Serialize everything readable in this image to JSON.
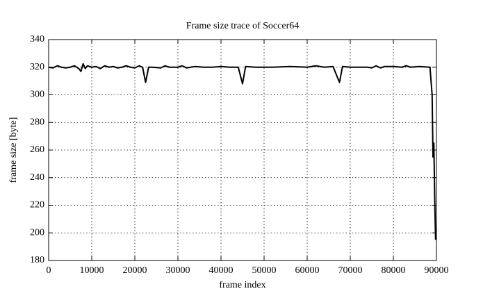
{
  "chart_data": {
    "type": "line",
    "title": "Frame size trace of Soccer64",
    "xlabel": "frame index",
    "ylabel": "frame size [byte]",
    "x": [
      0,
      1000,
      2000,
      3000,
      4000,
      5000,
      6000,
      7000,
      7500,
      8000,
      8500,
      9000,
      10000,
      11000,
      12000,
      13000,
      14000,
      15000,
      16000,
      17000,
      18000,
      19000,
      20000,
      21000,
      21800,
      22500,
      23200,
      24000,
      26000,
      27000,
      28000,
      30000,
      31000,
      32000,
      34000,
      36000,
      38000,
      40000,
      42000,
      44000,
      45000,
      45700,
      48000,
      52000,
      56000,
      60000,
      62000,
      64000,
      66000,
      67500,
      68200,
      70000,
      74000,
      75000,
      76000,
      77000,
      78000,
      80000,
      82000,
      83000,
      84000,
      86000,
      88500,
      89000,
      89200,
      89400,
      89600,
      89800
    ],
    "series": [
      {
        "name": "Soccer64",
        "color": "#000000",
        "values": [
          320,
          319.5,
          321,
          320,
          319.5,
          320,
          321,
          319,
          317,
          322.5,
          319,
          321,
          320,
          320.5,
          319,
          321,
          320,
          320.5,
          319.5,
          320,
          321,
          320,
          319.5,
          321,
          320,
          309,
          320,
          320,
          319.5,
          321,
          320,
          320,
          321,
          319.5,
          320.5,
          320,
          320,
          320.5,
          320,
          320,
          308,
          320.5,
          320,
          320,
          320.5,
          320,
          321,
          320,
          320.5,
          309,
          320.5,
          320,
          320,
          319.5,
          321,
          319.5,
          320.5,
          320.5,
          320,
          321,
          320,
          320.5,
          320,
          300,
          255,
          265,
          225,
          195
        ]
      }
    ],
    "xlim": [
      0,
      90000
    ],
    "xticks": [
      0,
      10000,
      20000,
      30000,
      40000,
      50000,
      60000,
      70000,
      80000,
      90000
    ],
    "ylim": [
      180,
      340
    ],
    "yticks": [
      180,
      200,
      220,
      240,
      260,
      280,
      300,
      320,
      340
    ],
    "grid": true
  }
}
